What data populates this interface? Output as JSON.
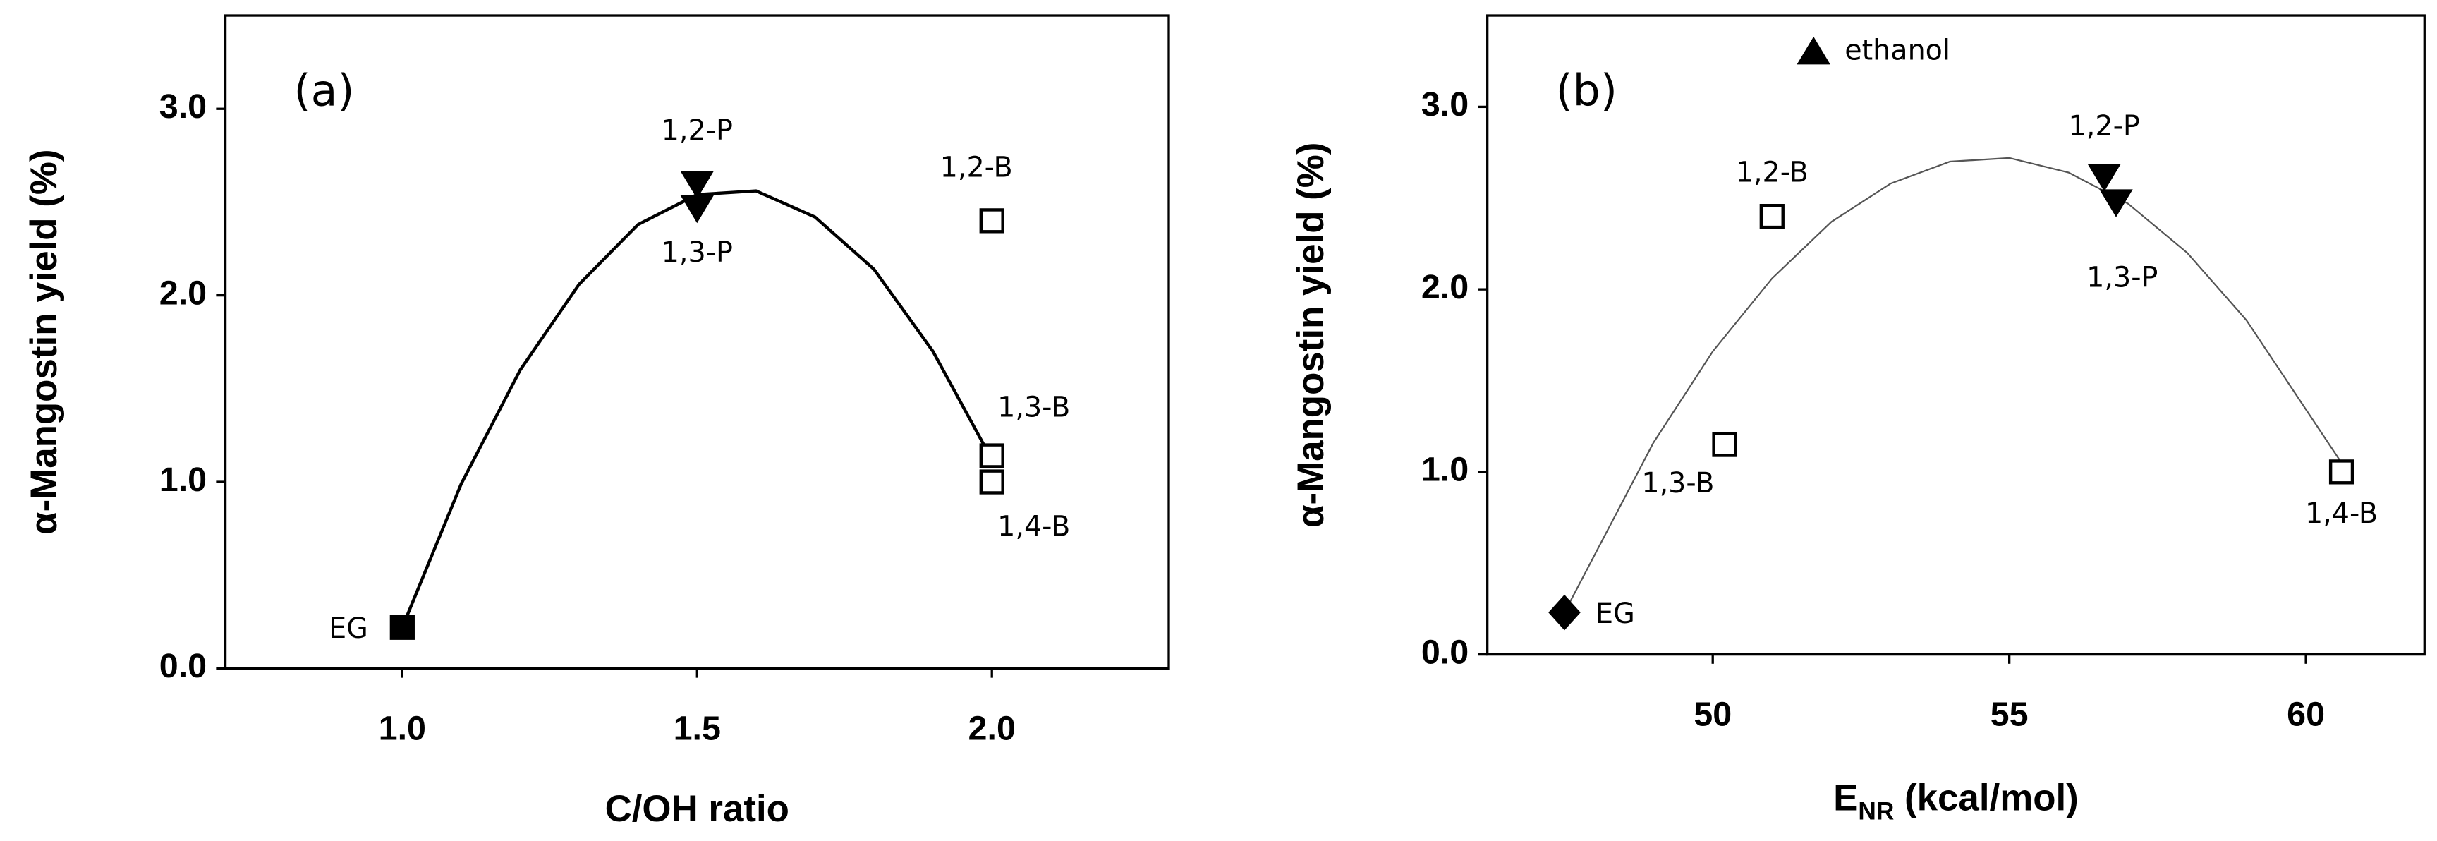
{
  "chart_data": [
    {
      "type": "scatter",
      "panel_label": "(a)",
      "x_label": "C/OH ratio",
      "y_label": "α-Mangostin yield (%)",
      "xlim": [
        0.7,
        2.3
      ],
      "ylim": [
        0,
        3.5
      ],
      "xticks": [
        {
          "value": 1,
          "label": "1.0"
        },
        {
          "value": 1.5,
          "label": "1.5"
        },
        {
          "value": 2,
          "label": "2.0"
        }
      ],
      "yticks": [
        {
          "value": 0,
          "label": "0.0"
        },
        {
          "value": 1,
          "label": "1.0"
        },
        {
          "value": 2,
          "label": "2.0"
        },
        {
          "value": 3,
          "label": "3.0"
        }
      ],
      "series": [
        {
          "type": "line",
          "color": "#000000",
          "x": [
            1.0,
            1.1,
            1.2,
            1.3,
            1.4,
            1.5,
            1.6,
            1.7,
            1.8,
            1.9,
            2.0
          ],
          "values": [
            0.22,
            0.99,
            1.6,
            2.06,
            2.38,
            2.54,
            2.56,
            2.42,
            2.14,
            1.7,
            1.12
          ]
        },
        {
          "name": "EG",
          "marker": "square",
          "filled": true,
          "x": [
            1.0
          ],
          "values": [
            0.22
          ]
        },
        {
          "name": "1,2-P",
          "marker": "triangle-down",
          "filled": true,
          "x": [
            1.5
          ],
          "values": [
            2.6
          ]
        },
        {
          "name": "1,3-P",
          "marker": "triangle-down",
          "filled": true,
          "x": [
            1.5
          ],
          "values": [
            2.47
          ]
        },
        {
          "name": "1,2-B",
          "marker": "square",
          "filled": false,
          "x": [
            2.0
          ],
          "values": [
            2.4
          ]
        },
        {
          "name": "1,3-B",
          "marker": "square",
          "filled": false,
          "x": [
            2.0
          ],
          "values": [
            1.14
          ]
        },
        {
          "name": "1,4-B",
          "marker": "square",
          "filled": false,
          "x": [
            2.0
          ],
          "values": [
            1.0
          ]
        }
      ]
    },
    {
      "type": "scatter",
      "panel_label": "(b)",
      "x_label_parts": [
        "E",
        "NR",
        " (kcal/mol)"
      ],
      "y_label": "α-Mangostin yield (%)",
      "xlim": [
        46.2,
        62
      ],
      "ylim": [
        0,
        3.5
      ],
      "xticks": [
        50,
        55,
        60
      ],
      "yticks": [
        {
          "value": 0,
          "label": "0.0"
        },
        {
          "value": 1,
          "label": "1.0"
        },
        {
          "value": 2,
          "label": "2.0"
        },
        {
          "value": 3,
          "label": "3.0"
        }
      ],
      "series": [
        {
          "type": "line",
          "color": "#555555",
          "x": [
            47.5,
            49,
            50,
            51,
            52,
            53,
            54,
            55,
            56,
            57,
            58,
            59,
            60.6
          ],
          "values": [
            0.23,
            1.16,
            1.66,
            2.06,
            2.37,
            2.58,
            2.7,
            2.72,
            2.64,
            2.47,
            2.2,
            1.83,
            1.05
          ]
        },
        {
          "name": "EG",
          "marker": "diamond",
          "filled": true,
          "x": [
            47.5
          ],
          "values": [
            0.23
          ]
        },
        {
          "name": "1,3-B",
          "marker": "square",
          "filled": false,
          "x": [
            50.2
          ],
          "values": [
            1.15
          ]
        },
        {
          "name": "1,2-B",
          "marker": "square",
          "filled": false,
          "x": [
            51.0
          ],
          "values": [
            2.4
          ]
        },
        {
          "name": "ethanol",
          "marker": "triangle-up",
          "filled": true,
          "x": [
            51.7
          ],
          "values": [
            3.3
          ]
        },
        {
          "name": "1,2-P",
          "marker": "triangle-down",
          "filled": true,
          "x": [
            56.6
          ],
          "values": [
            2.62
          ]
        },
        {
          "name": "1,3-P",
          "marker": "triangle-down",
          "filled": true,
          "x": [
            56.8
          ],
          "values": [
            2.48
          ]
        },
        {
          "name": "1,4-B",
          "marker": "square",
          "filled": false,
          "x": [
            60.6
          ],
          "values": [
            1.0
          ]
        }
      ]
    }
  ]
}
